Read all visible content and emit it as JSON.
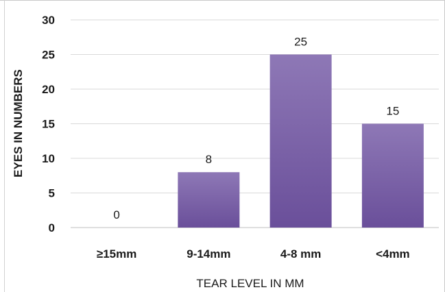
{
  "chart_data": {
    "type": "bar",
    "categories": [
      "≥15mm",
      "9-14mm",
      "4-8 mm",
      "<4mm"
    ],
    "values": [
      0,
      8,
      25,
      15
    ],
    "data_labels": [
      "0",
      "8",
      "25",
      "15"
    ],
    "xlabel": "TEAR LEVEL IN MM",
    "ylabel": "EYES IN NUMBERS",
    "ylim": [
      0,
      30
    ],
    "yticks": [
      0,
      5,
      10,
      15,
      20,
      25,
      30
    ],
    "grid": true,
    "legend": "none",
    "colors": {
      "bar_top": "#8e78b6",
      "bar_bottom": "#6a4f9a",
      "grid": "#d9d9d9"
    }
  }
}
